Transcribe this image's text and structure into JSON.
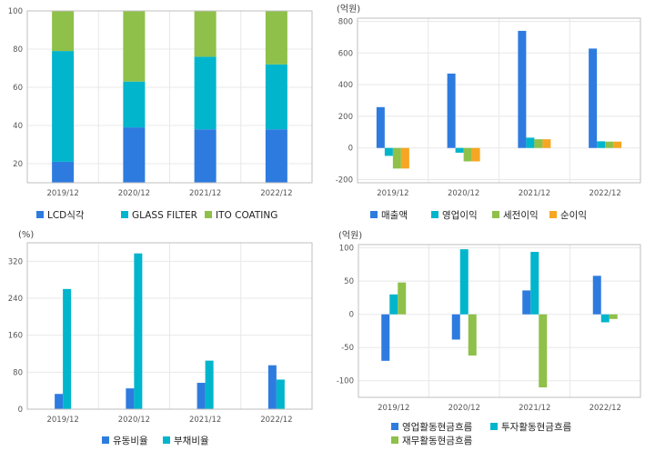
{
  "chart_data": [
    {
      "type": "bar",
      "stacked": true,
      "unit": "",
      "categories": [
        "2019/12",
        "2020/12",
        "2021/12",
        "2022/12"
      ],
      "ylim": [
        10,
        100
      ],
      "yticks": [
        20,
        40,
        60,
        80,
        100
      ],
      "grid": true,
      "legend_position": "bottom",
      "series": [
        {
          "name": "LCD식각",
          "color": "#2e7be0",
          "values": [
            21,
            39,
            38,
            38
          ]
        },
        {
          "name": "GLASS FILTER",
          "color": "#00b5cc",
          "values": [
            58,
            24,
            38,
            34
          ]
        },
        {
          "name": "ITO COATING",
          "color": "#8fc04a",
          "values": [
            21,
            37,
            24,
            28
          ]
        }
      ]
    },
    {
      "type": "bar",
      "unit": "(억원)",
      "categories": [
        "2019/12",
        "2020/12",
        "2021/12",
        "2022/12"
      ],
      "ylim": [
        -220,
        820
      ],
      "yticks": [
        -200,
        0,
        200,
        400,
        600,
        800
      ],
      "grid": true,
      "legend_position": "bottom",
      "series": [
        {
          "name": "매출액",
          "color": "#2e7be0",
          "values": [
            258,
            470,
            740,
            628
          ]
        },
        {
          "name": "영업이익",
          "color": "#00b5cc",
          "values": [
            -50,
            -30,
            65,
            42
          ]
        },
        {
          "name": "세전이익",
          "color": "#8fc04a",
          "values": [
            -130,
            -85,
            55,
            40
          ]
        },
        {
          "name": "순이익",
          "color": "#f6a623",
          "values": [
            -130,
            -85,
            55,
            40
          ]
        }
      ]
    },
    {
      "type": "bar",
      "unit": "(%)",
      "categories": [
        "2019/12",
        "2020/12",
        "2021/12",
        "2022/12"
      ],
      "ylim": [
        0,
        360
      ],
      "yticks": [
        0,
        80,
        160,
        240,
        320
      ],
      "grid": true,
      "legend_position": "bottom",
      "series": [
        {
          "name": "유동비율",
          "color": "#2e7be0",
          "values": [
            33,
            45,
            57,
            95
          ]
        },
        {
          "name": "부채비율",
          "color": "#00b5cc",
          "values": [
            260,
            337,
            105,
            64
          ]
        }
      ]
    },
    {
      "type": "bar",
      "unit": "(억원)",
      "categories": [
        "2019/12",
        "2020/12",
        "2021/12",
        "2022/12"
      ],
      "ylim": [
        -125,
        105
      ],
      "yticks": [
        -100,
        -50,
        0,
        50,
        100
      ],
      "grid": true,
      "legend_position": "bottom",
      "series": [
        {
          "name": "영업활동현금흐름",
          "color": "#2e7be0",
          "values": [
            -70,
            -38,
            36,
            58
          ]
        },
        {
          "name": "투자활동현금흐름",
          "color": "#00b5cc",
          "values": [
            30,
            98,
            94,
            -12
          ]
        },
        {
          "name": "재무활동현금흐름",
          "color": "#8fc04a",
          "values": [
            48,
            -62,
            -110,
            -7
          ]
        }
      ]
    }
  ]
}
